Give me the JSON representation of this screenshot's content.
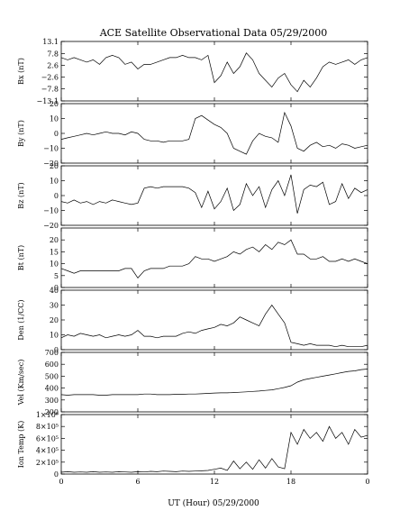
{
  "title": "ACE Satellite Observational Data  05/29/2000",
  "xlabel": "UT (Hour)  05/29/2000",
  "xticks": [
    "0",
    "6",
    "12",
    "18",
    "0"
  ],
  "chart_data": [
    {
      "type": "line",
      "name": "bx",
      "ylabel": "Bx (nT)",
      "ylim": [
        -13.1,
        13.1
      ],
      "yticks": [
        13.1,
        7.8,
        2.6,
        -2.6,
        -7.8,
        -13.1
      ],
      "yticklabels": [
        "13.1",
        "7.8",
        "2.6",
        "−2.6",
        "−7.8",
        "−13.1"
      ],
      "x": [
        0,
        0.5,
        1,
        1.5,
        2,
        2.5,
        3,
        3.5,
        4,
        4.5,
        5,
        5.5,
        6,
        6.5,
        7,
        7.5,
        8,
        8.5,
        9,
        9.5,
        10,
        10.5,
        11,
        11.5,
        12,
        12.5,
        13,
        13.5,
        14,
        14.5,
        15,
        15.5,
        16,
        16.5,
        17,
        17.5,
        18,
        18.5,
        19,
        19.5,
        20,
        20.5,
        21,
        21.5,
        22,
        22.5,
        23,
        23.5,
        24
      ],
      "y": [
        6,
        5,
        6,
        5,
        4,
        5,
        3,
        6,
        7,
        6,
        3,
        4,
        1,
        3,
        3,
        4,
        5,
        6,
        6,
        7,
        6,
        6,
        5,
        7,
        -5,
        -2,
        4,
        -1,
        2,
        8,
        5,
        -1,
        -4,
        -7,
        -3,
        -1,
        -6,
        -9,
        -4,
        -7,
        -3,
        2,
        4,
        3,
        4,
        5,
        3,
        5,
        6
      ]
    },
    {
      "type": "line",
      "name": "by",
      "ylabel": "By (nT)",
      "ylim": [
        -20,
        20
      ],
      "yticks": [
        20,
        10,
        0,
        -10,
        -20
      ],
      "yticklabels": [
        "20",
        "10",
        "0",
        "−10",
        "−20"
      ],
      "x": [
        0,
        0.5,
        1,
        1.5,
        2,
        2.5,
        3,
        3.5,
        4,
        4.5,
        5,
        5.5,
        6,
        6.5,
        7,
        7.5,
        8,
        8.5,
        9,
        9.5,
        10,
        10.5,
        11,
        11.5,
        12,
        12.5,
        13,
        13.5,
        14,
        14.5,
        15,
        15.5,
        16,
        16.5,
        17,
        17.5,
        18,
        18.5,
        19,
        19.5,
        20,
        20.5,
        21,
        21.5,
        22,
        22.5,
        23,
        23.5,
        24
      ],
      "y": [
        -4,
        -3,
        -2,
        -1,
        0,
        -1,
        0,
        1,
        0,
        0,
        -1,
        1,
        0,
        -4,
        -5,
        -5,
        -6,
        -5,
        -5,
        -5,
        -4,
        10,
        12,
        9,
        6,
        4,
        0,
        -10,
        -12,
        -14,
        -5,
        0,
        -2,
        -3,
        -6,
        14,
        5,
        -10,
        -12,
        -8,
        -6,
        -9,
        -8,
        -10,
        -7,
        -8,
        -10,
        -9,
        -8
      ]
    },
    {
      "type": "line",
      "name": "bz",
      "ylabel": "Bz (nT)",
      "ylim": [
        -20,
        20
      ],
      "yticks": [
        20,
        10,
        0,
        -10,
        -20
      ],
      "yticklabels": [
        "20",
        "10",
        "0",
        "−10",
        "−20"
      ],
      "x": [
        0,
        0.5,
        1,
        1.5,
        2,
        2.5,
        3,
        3.5,
        4,
        4.5,
        5,
        5.5,
        6,
        6.5,
        7,
        7.5,
        8,
        8.5,
        9,
        9.5,
        10,
        10.5,
        11,
        11.5,
        12,
        12.5,
        13,
        13.5,
        14,
        14.5,
        15,
        15.5,
        16,
        16.5,
        17,
        17.5,
        18,
        18.5,
        19,
        19.5,
        20,
        20.5,
        21,
        21.5,
        22,
        22.5,
        23,
        23.5,
        24
      ],
      "y": [
        -4,
        -5,
        -3,
        -5,
        -4,
        -6,
        -4,
        -5,
        -3,
        -4,
        -5,
        -6,
        -5,
        5,
        6,
        5,
        6,
        6,
        6,
        6,
        5,
        2,
        -8,
        3,
        -9,
        -4,
        5,
        -10,
        -6,
        8,
        0,
        6,
        -8,
        4,
        10,
        0,
        14,
        -12,
        4,
        7,
        6,
        9,
        -6,
        -4,
        8,
        -2,
        5,
        2,
        4
      ]
    },
    {
      "type": "line",
      "name": "bt",
      "ylabel": "Bt (nT)",
      "ylim": [
        0,
        25
      ],
      "yticks": [
        0,
        5,
        10,
        15,
        20
      ],
      "yticklabels": [
        "0",
        "5",
        "10",
        "15",
        "20"
      ],
      "x": [
        0,
        0.5,
        1,
        1.5,
        2,
        2.5,
        3,
        3.5,
        4,
        4.5,
        5,
        5.5,
        6,
        6.5,
        7,
        7.5,
        8,
        8.5,
        9,
        9.5,
        10,
        10.5,
        11,
        11.5,
        12,
        12.5,
        13,
        13.5,
        14,
        14.5,
        15,
        15.5,
        16,
        16.5,
        17,
        17.5,
        18,
        18.5,
        19,
        19.5,
        20,
        20.5,
        21,
        21.5,
        22,
        22.5,
        23,
        23.5,
        24
      ],
      "y": [
        8,
        7,
        6,
        7,
        7,
        7,
        7,
        7,
        7,
        7,
        8,
        8,
        4,
        7,
        8,
        8,
        8,
        9,
        9,
        9,
        10,
        13,
        12,
        12,
        11,
        12,
        13,
        15,
        14,
        16,
        17,
        15,
        18,
        16,
        19,
        18,
        20,
        14,
        14,
        12,
        12,
        13,
        11,
        11,
        12,
        11,
        12,
        11,
        10
      ]
    },
    {
      "type": "line",
      "name": "den",
      "ylabel": "Den (1/CC)",
      "ylim": [
        0,
        40
      ],
      "yticks": [
        0,
        10,
        20,
        30,
        40
      ],
      "yticklabels": [
        "0",
        "10",
        "20",
        "30",
        "40"
      ],
      "x": [
        0,
        0.5,
        1,
        1.5,
        2,
        2.5,
        3,
        3.5,
        4,
        4.5,
        5,
        5.5,
        6,
        6.5,
        7,
        7.5,
        8,
        8.5,
        9,
        9.5,
        10,
        10.5,
        11,
        11.5,
        12,
        12.5,
        13,
        13.5,
        14,
        14.5,
        15,
        15.5,
        16,
        16.5,
        17,
        17.5,
        18,
        18.5,
        19,
        19.5,
        20,
        20.5,
        21,
        21.5,
        22,
        22.5,
        23,
        23.5,
        24
      ],
      "y": [
        8,
        10,
        9,
        11,
        10,
        9,
        10,
        8,
        9,
        10,
        9,
        10,
        13,
        9,
        9,
        8,
        9,
        9,
        9,
        11,
        12,
        11,
        13,
        14,
        15,
        17,
        16,
        18,
        22,
        20,
        18,
        16,
        24,
        30,
        24,
        18,
        5,
        4,
        3,
        4,
        3,
        3,
        3,
        2,
        3,
        2,
        2,
        2,
        3
      ]
    },
    {
      "type": "line",
      "name": "vel",
      "ylabel": "Vel (Km/sec)",
      "ylim": [
        200,
        700
      ],
      "yticks": [
        200,
        300,
        400,
        500,
        600,
        700
      ],
      "yticklabels": [
        "200",
        "300",
        "400",
        "500",
        "600",
        "700"
      ],
      "x": [
        0,
        0.5,
        1,
        1.5,
        2,
        2.5,
        3,
        3.5,
        4,
        4.5,
        5,
        5.5,
        6,
        6.5,
        7,
        7.5,
        8,
        8.5,
        9,
        9.5,
        10,
        10.5,
        11,
        11.5,
        12,
        12.5,
        13,
        13.5,
        14,
        14.5,
        15,
        15.5,
        16,
        16.5,
        17,
        17.5,
        18,
        18.5,
        19,
        19.5,
        20,
        20.5,
        21,
        21.5,
        22,
        22.5,
        23,
        23.5,
        24
      ],
      "y": [
        345,
        340,
        345,
        345,
        345,
        345,
        340,
        340,
        345,
        345,
        345,
        345,
        345,
        350,
        350,
        345,
        345,
        345,
        348,
        348,
        350,
        350,
        352,
        355,
        358,
        360,
        360,
        362,
        365,
        368,
        372,
        375,
        380,
        385,
        395,
        405,
        420,
        450,
        470,
        480,
        490,
        500,
        510,
        520,
        530,
        540,
        545,
        555,
        560
      ]
    },
    {
      "type": "line",
      "name": "temp",
      "ylabel": "Ion Temp (K)",
      "ylim": [
        0,
        1000000
      ],
      "yticks": [
        0,
        200000,
        400000,
        600000,
        800000,
        1000000
      ],
      "yticklabels": [
        "0",
        "2×10⁵",
        "4×10⁵",
        "6×10⁵",
        "8×10⁵",
        "1×10⁶"
      ],
      "x": [
        0,
        0.5,
        1,
        1.5,
        2,
        2.5,
        3,
        3.5,
        4,
        4.5,
        5,
        5.5,
        6,
        6.5,
        7,
        7.5,
        8,
        8.5,
        9,
        9.5,
        10,
        10.5,
        11,
        11.5,
        12,
        12.5,
        13,
        13.5,
        14,
        14.5,
        15,
        15.5,
        16,
        16.5,
        17,
        17.5,
        18,
        18.5,
        19,
        19.5,
        20,
        20.5,
        21,
        21.5,
        22,
        22.5,
        23,
        23.5,
        24
      ],
      "y": [
        30000,
        40000,
        30000,
        35000,
        30000,
        40000,
        30000,
        35000,
        30000,
        40000,
        35000,
        30000,
        40000,
        35000,
        45000,
        40000,
        50000,
        45000,
        40000,
        50000,
        45000,
        50000,
        55000,
        60000,
        80000,
        100000,
        60000,
        220000,
        90000,
        200000,
        80000,
        240000,
        100000,
        260000,
        120000,
        90000,
        700000,
        500000,
        750000,
        600000,
        700000,
        550000,
        800000,
        600000,
        700000,
        500000,
        750000,
        620000,
        650000
      ]
    }
  ]
}
